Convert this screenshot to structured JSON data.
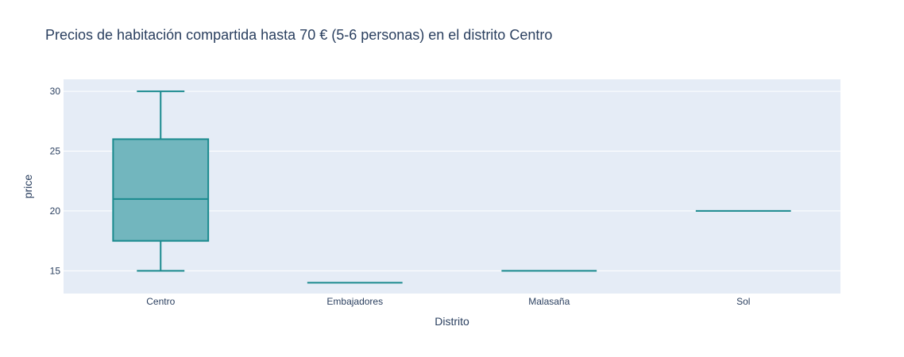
{
  "chart_data": {
    "type": "box",
    "title": "Precios de habitación compartida hasta 70 € (5-6 personas) en el distrito Centro",
    "xlabel": "Distrito",
    "ylabel": "price",
    "ylim": [
      13.1,
      31.0
    ],
    "yticks": [
      15,
      20,
      25,
      30
    ],
    "grid": true,
    "colors": {
      "box_line": "#1a8a8e",
      "box_fill": "#72b6be",
      "plot_bg": "#e5ecf6",
      "grid": "#ffffff",
      "text": "#2a3f5f"
    },
    "categories": [
      "Centro",
      "Embajadores",
      "Malasaña",
      "Sol"
    ],
    "boxes": [
      {
        "category": "Centro",
        "min": 15,
        "q1": 17.5,
        "median": 21,
        "q3": 26,
        "max": 30
      },
      {
        "category": "Embajadores",
        "min": 14,
        "q1": 14,
        "median": 14,
        "q3": 14,
        "max": 14
      },
      {
        "category": "Malasaña",
        "min": 15,
        "q1": 15,
        "median": 15,
        "q3": 15,
        "max": 15
      },
      {
        "category": "Sol",
        "min": 20,
        "q1": 20,
        "median": 20,
        "q3": 20,
        "max": 20
      }
    ]
  }
}
